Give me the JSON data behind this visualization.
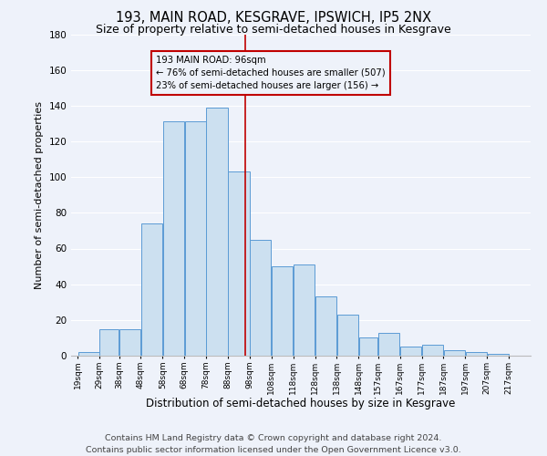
{
  "title": "193, MAIN ROAD, KESGRAVE, IPSWICH, IP5 2NX",
  "subtitle": "Size of property relative to semi-detached houses in Kesgrave",
  "xlabel": "Distribution of semi-detached houses by size in Kesgrave",
  "ylabel": "Number of semi-detached properties",
  "footer_line1": "Contains HM Land Registry data © Crown copyright and database right 2024.",
  "footer_line2": "Contains public sector information licensed under the Open Government Licence v3.0.",
  "bar_left_edges": [
    19,
    29,
    38,
    48,
    58,
    68,
    78,
    88,
    98,
    108,
    118,
    128,
    138,
    148,
    157,
    167,
    177,
    187,
    197,
    207
  ],
  "bar_widths": [
    10,
    9,
    10,
    10,
    10,
    10,
    10,
    10,
    10,
    10,
    10,
    10,
    10,
    9,
    10,
    10,
    10,
    10,
    10,
    10
  ],
  "bar_heights": [
    2,
    15,
    15,
    74,
    131,
    131,
    139,
    103,
    65,
    50,
    51,
    33,
    23,
    10,
    13,
    5,
    6,
    3,
    2,
    1
  ],
  "bar_color": "#cce0f0",
  "bar_edgecolor": "#5b9bd5",
  "tick_labels": [
    "19sqm",
    "29sqm",
    "38sqm",
    "48sqm",
    "58sqm",
    "68sqm",
    "78sqm",
    "88sqm",
    "98sqm",
    "108sqm",
    "118sqm",
    "128sqm",
    "138sqm",
    "148sqm",
    "157sqm",
    "167sqm",
    "177sqm",
    "187sqm",
    "197sqm",
    "207sqm",
    "217sqm"
  ],
  "vline_x": 96,
  "vline_color": "#c00000",
  "annotation_title": "193 MAIN ROAD: 96sqm",
  "annotation_line1": "← 76% of semi-detached houses are smaller (507)",
  "annotation_line2": "23% of semi-detached houses are larger (156) →",
  "annotation_box_color": "#c00000",
  "ylim": [
    0,
    180
  ],
  "yticks": [
    0,
    20,
    40,
    60,
    80,
    100,
    120,
    140,
    160,
    180
  ],
  "background_color": "#eef2fa",
  "grid_color": "#ffffff",
  "title_fontsize": 10.5,
  "subtitle_fontsize": 9,
  "xlabel_fontsize": 8.5,
  "ylabel_fontsize": 8,
  "tick_fontsize": 6.5,
  "footer_fontsize": 6.8
}
